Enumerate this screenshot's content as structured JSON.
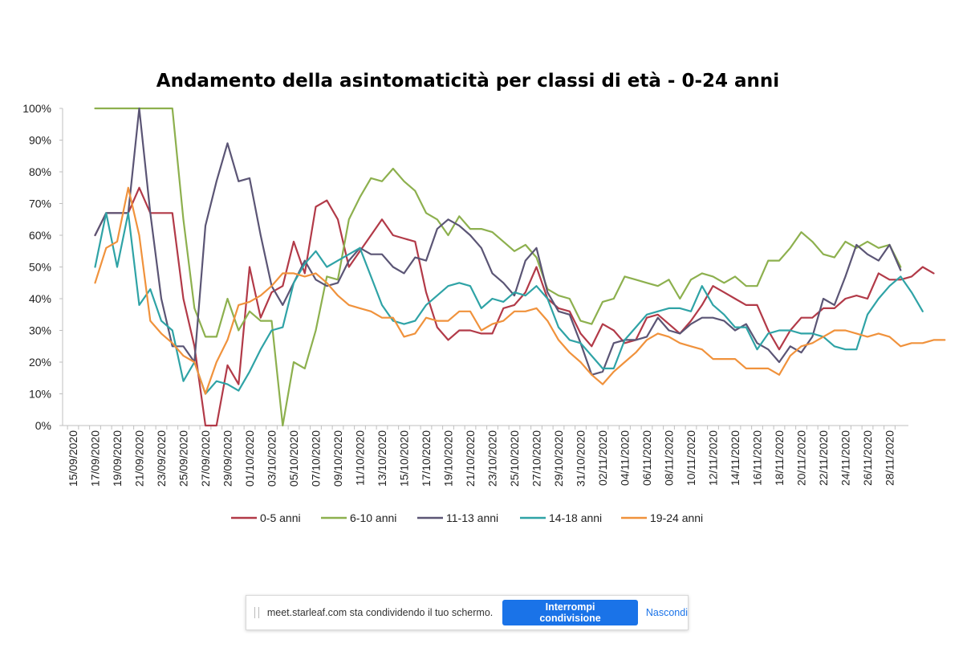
{
  "colors": {
    "s0": "#B23A48",
    "s1": "#8DB04E",
    "s2": "#5B5575",
    "s3": "#2FA3A6",
    "s4": "#F0923C"
  },
  "chart_data": {
    "type": "line",
    "title": "Andamento della asintomaticità per classi di età - 0-24 anni",
    "yticks": [
      "0%",
      "10%",
      "20%",
      "30%",
      "40%",
      "50%",
      "60%",
      "70%",
      "80%",
      "90%",
      "100%"
    ],
    "ylim": [
      0,
      100
    ],
    "xticks": [
      "15/09/2020",
      "17/09/2020",
      "19/09/2020",
      "21/09/2020",
      "23/09/2020",
      "25/09/2020",
      "27/09/2020",
      "29/09/2020",
      "01/10/2020",
      "03/10/2020",
      "05/10/2020",
      "07/10/2020",
      "09/10/2020",
      "11/10/2020",
      "13/10/2020",
      "15/10/2020",
      "17/10/2020",
      "19/10/2020",
      "21/10/2020",
      "23/10/2020",
      "25/10/2020",
      "27/10/2020",
      "29/10/2020",
      "31/10/2020",
      "02/11/2020",
      "04/11/2020",
      "06/11/2020",
      "08/11/2020",
      "10/11/2020",
      "12/11/2020",
      "14/11/2020",
      "16/11/2020",
      "18/11/2020",
      "20/11/2020",
      "22/11/2020",
      "24/11/2020",
      "26/11/2020",
      "28/11/2020"
    ],
    "x_start": "15/09/2020",
    "legend_position": "bottom",
    "series": [
      {
        "name": "0-5 anni",
        "start": "17/09/2020",
        "values": [
          60,
          67,
          67,
          67,
          75,
          67,
          67,
          67,
          40,
          25,
          0,
          0,
          19,
          13,
          50,
          34,
          42,
          44,
          58,
          48,
          69,
          71,
          65,
          50,
          55,
          60,
          65,
          60,
          59,
          58,
          42,
          31,
          27,
          30,
          30,
          29,
          29,
          37,
          38,
          42,
          50,
          40,
          37,
          36,
          29,
          25,
          32,
          30,
          26,
          27,
          34,
          35,
          32,
          29,
          33,
          38,
          44,
          42,
          40,
          38,
          38,
          30,
          24,
          30,
          34,
          34,
          37,
          37,
          40,
          41,
          40,
          48,
          46,
          46,
          47,
          50,
          48
        ]
      },
      {
        "name": "6-10 anni",
        "start": "17/09/2020",
        "values": [
          100,
          100,
          100,
          100,
          100,
          100,
          100,
          100,
          65,
          37,
          28,
          28,
          40,
          30,
          36,
          33,
          33,
          0,
          20,
          18,
          30,
          47,
          46,
          65,
          72,
          78,
          77,
          81,
          77,
          74,
          67,
          65,
          60,
          66,
          62,
          62,
          61,
          58,
          55,
          57,
          53,
          43,
          41,
          40,
          33,
          32,
          39,
          40,
          47,
          46,
          45,
          44,
          46,
          40,
          46,
          48,
          47,
          45,
          47,
          44,
          44,
          52,
          52,
          56,
          61,
          58,
          54,
          53,
          58,
          56,
          58,
          56,
          57,
          50
        ]
      },
      {
        "name": "11-13 anni",
        "start": "17/09/2020",
        "values": [
          60,
          67,
          67,
          67,
          100,
          67,
          40,
          25,
          25,
          20,
          63,
          77,
          89,
          77,
          78,
          60,
          44,
          38,
          45,
          52,
          46,
          44,
          45,
          52,
          56,
          54,
          54,
          50,
          48,
          53,
          52,
          62,
          65,
          63,
          60,
          56,
          48,
          45,
          41,
          52,
          56,
          42,
          36,
          35,
          26,
          16,
          17,
          26,
          27,
          27,
          28,
          34,
          30,
          29,
          32,
          34,
          34,
          33,
          30,
          32,
          26,
          24,
          20,
          25,
          23,
          28,
          40,
          38,
          47,
          57,
          54,
          52,
          57,
          49
        ]
      },
      {
        "name": "14-18 anni",
        "start": "17/09/2020",
        "values": [
          50,
          67,
          50,
          67,
          38,
          43,
          33,
          30,
          14,
          20,
          10,
          14,
          13,
          11,
          17,
          24,
          30,
          31,
          45,
          51,
          55,
          50,
          52,
          54,
          56,
          47,
          38,
          33,
          32,
          33,
          38,
          41,
          44,
          45,
          44,
          37,
          40,
          39,
          42,
          41,
          44,
          40,
          31,
          27,
          26,
          22,
          18,
          18,
          27,
          31,
          35,
          36,
          37,
          37,
          36,
          44,
          38,
          35,
          31,
          31,
          24,
          29,
          30,
          30,
          29,
          29,
          28,
          25,
          24,
          24,
          35,
          40,
          44,
          47,
          42,
          36
        ]
      },
      {
        "name": "19-24 anni",
        "start": "17/09/2020",
        "values": [
          45,
          56,
          58,
          75,
          60,
          33,
          29,
          26,
          22,
          20,
          10,
          20,
          27,
          38,
          39,
          41,
          44,
          48,
          48,
          47,
          48,
          45,
          41,
          38,
          37,
          36,
          34,
          34,
          28,
          29,
          34,
          33,
          33,
          36,
          36,
          30,
          32,
          33,
          36,
          36,
          37,
          33,
          27,
          23,
          20,
          16,
          13,
          17,
          20,
          23,
          27,
          29,
          28,
          26,
          25,
          24,
          21,
          21,
          21,
          18,
          18,
          18,
          16,
          22,
          25,
          26,
          28,
          30,
          30,
          29,
          28,
          29,
          28,
          25,
          26,
          26,
          27,
          27
        ]
      }
    ]
  },
  "share_bar": {
    "message": "meet.starleaf.com sta condividendo il tuo schermo.",
    "stop_label": "Interrompi condivisione",
    "hide_label": "Nascondi"
  }
}
